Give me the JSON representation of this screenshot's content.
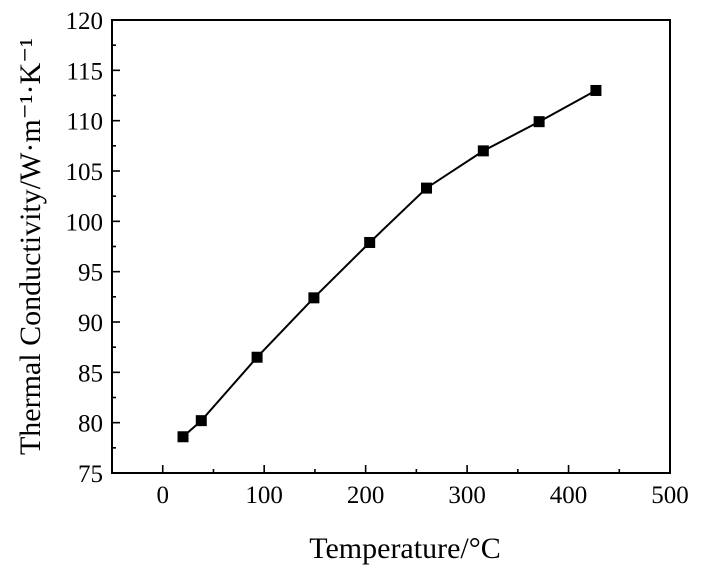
{
  "chart_data": {
    "type": "line",
    "title": "",
    "xlabel": "Temperature/°C",
    "ylabel": "Thermal Conductivity/W·m⁻¹·K⁻¹",
    "xlim": [
      -50,
      500
    ],
    "ylim": [
      75,
      120
    ],
    "x_ticks": [
      0,
      100,
      200,
      300,
      400,
      500
    ],
    "y_ticks": [
      75,
      80,
      85,
      90,
      95,
      100,
      105,
      110,
      115,
      120
    ],
    "grid": false,
    "legend": "none",
    "marker": "square",
    "series": [
      {
        "x": [
          20,
          38,
          93,
          149,
          204,
          260,
          316,
          371,
          427
        ],
        "y": [
          78.6,
          80.2,
          86.5,
          92.4,
          97.9,
          103.3,
          107.0,
          109.9,
          113.0
        ]
      }
    ]
  }
}
